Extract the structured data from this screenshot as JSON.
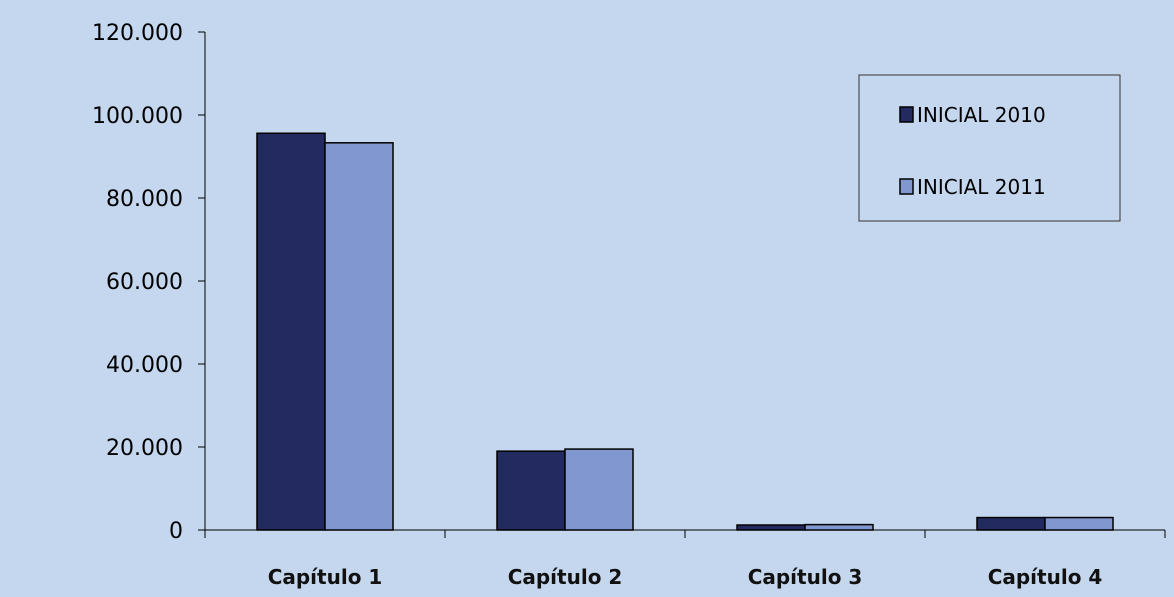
{
  "chart_data": {
    "type": "bar",
    "title": "",
    "xlabel": "",
    "ylabel": "",
    "categories": [
      "Capítulo 1",
      "Capítulo 2",
      "Capítulo 3",
      "Capítulo 4"
    ],
    "series": [
      {
        "name": "INICIAL 2010",
        "color": "#222a60",
        "values": [
          95600,
          19000,
          1200,
          3000
        ]
      },
      {
        "name": "INICIAL 2011",
        "color": "#8097cf",
        "values": [
          93300,
          19500,
          1300,
          3000
        ]
      }
    ],
    "ylim": [
      0,
      120000
    ],
    "yticks": [
      0,
      20000,
      40000,
      60000,
      80000,
      100000,
      120000
    ],
    "ytick_labels": [
      "0",
      "20.000",
      "40.000",
      "60.000",
      "80.000",
      "100.000",
      "120.000"
    ],
    "grid": false,
    "legend_position": "top-right",
    "background_color": "#c5d7ee"
  }
}
